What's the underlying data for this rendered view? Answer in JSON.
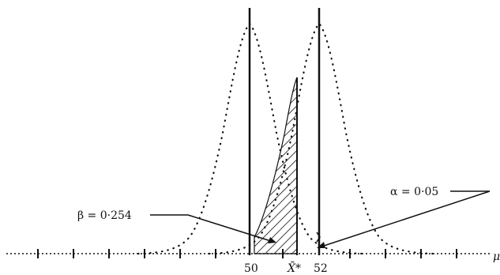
{
  "axis": {
    "variable": "μ",
    "ticks": [
      "50",
      "52"
    ]
  },
  "critical_value": {
    "symbol": "X̄*"
  },
  "annotations": {
    "beta": "β = 0·254",
    "alpha": "α = 0·05"
  },
  "colors": {
    "ink": "#111111",
    "paper": "#ffffff"
  }
}
